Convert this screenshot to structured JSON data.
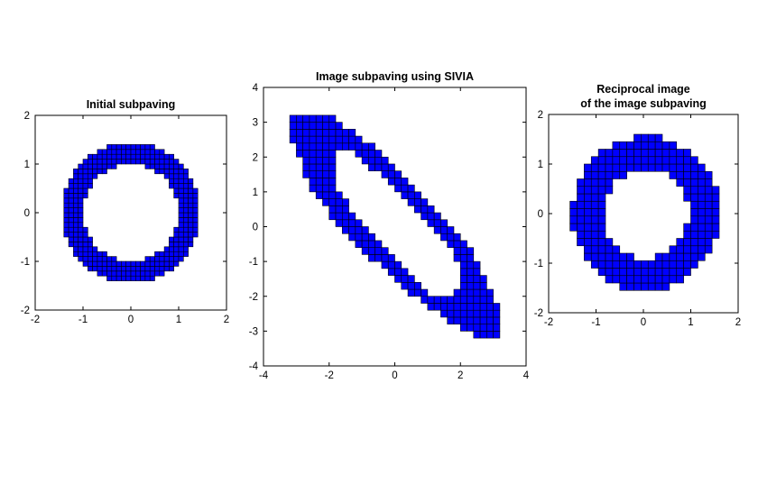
{
  "figure": {
    "background": "#ffffff",
    "fill_color": "#0000ff",
    "edge_color": "#000000"
  },
  "chart_data": [
    {
      "type": "subpaving",
      "title": [
        "Initial subpaving"
      ],
      "xlim": [
        -2,
        2
      ],
      "ylim": [
        -2,
        2
      ],
      "xticks": [
        -2,
        -1,
        0,
        1,
        2
      ],
      "yticks": [
        -2,
        -1,
        0,
        1,
        2
      ],
      "shape": {
        "kind": "annulus",
        "inner_radius": 1.0,
        "outer_radius": 1.45,
        "center": [
          0,
          0
        ]
      },
      "box_size": 0.1
    },
    {
      "type": "subpaving",
      "title": [
        "Image subpaving using SIVIA"
      ],
      "xlim": [
        -4,
        4
      ],
      "ylim": [
        -4,
        4
      ],
      "xticks": [
        -4,
        -2,
        0,
        2,
        4
      ],
      "yticks": [
        -4,
        -3,
        -2,
        -1,
        0,
        1,
        2,
        3,
        4
      ],
      "shape": {
        "kind": "elliptic_ring",
        "outer_points": [
          [
            -3.2,
            2.7
          ],
          [
            -3.2,
            3.1
          ],
          [
            -2.2,
            3.3
          ],
          [
            -0.5,
            2.2
          ],
          [
            1.0,
            0.8
          ],
          [
            2.2,
            -0.5
          ],
          [
            3.3,
            -2.6
          ],
          [
            3.3,
            -3.1
          ],
          [
            2.7,
            -3.3
          ],
          [
            1.8,
            -2.8
          ],
          [
            0.2,
            -1.7
          ],
          [
            -1.3,
            -0.4
          ],
          [
            -2.5,
            1.0
          ]
        ],
        "inner_points": [
          [
            -1.8,
            1.9
          ],
          [
            -1.7,
            2.15
          ],
          [
            -1.3,
            2.15
          ],
          [
            -0.2,
            1.3
          ],
          [
            1.2,
            0.0
          ],
          [
            2.0,
            -1.1
          ],
          [
            2.0,
            -1.75
          ],
          [
            1.7,
            -2.0
          ],
          [
            1.2,
            -2.0
          ],
          [
            -0.2,
            -0.8
          ],
          [
            -1.3,
            0.4
          ],
          [
            -1.8,
            1.2
          ]
        ]
      },
      "box_size": 0.2
    },
    {
      "type": "subpaving",
      "title": [
        "Reciprocal image",
        "of the image subpaving"
      ],
      "xlim": [
        -2,
        2
      ],
      "ylim": [
        -2,
        2
      ],
      "xticks": [
        -2,
        -1,
        0,
        1,
        2
      ],
      "yticks": [
        -2,
        -1,
        0,
        1,
        2
      ],
      "shape": {
        "kind": "annulus",
        "inner_radius": 0.9,
        "outer_radius": 1.55,
        "center": [
          0.05,
          0
        ]
      },
      "box_size": 0.15
    }
  ]
}
